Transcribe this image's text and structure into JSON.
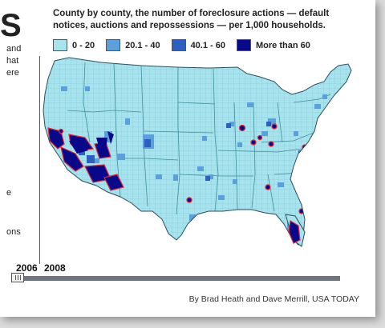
{
  "side_text": {
    "big_letter": "S",
    "lines": [
      "and",
      "hat",
      "ere"
    ],
    "line_e": "e",
    "line_ons": "ons"
  },
  "title": "County by county, the number of foreclosure actions — default notices, auctions and repossessions — per 1,000 households.",
  "legend": [
    {
      "label": "0 - 20",
      "color": "#a6e3ec"
    },
    {
      "label": "20.1 - 40",
      "color": "#5aa0dc"
    },
    {
      "label": "40.1 - 60",
      "color": "#2c5fc0"
    },
    {
      "label": "More than 60",
      "color": "#08088a"
    }
  ],
  "timeline": {
    "years": [
      "2006",
      "2008"
    ],
    "selected": "2008"
  },
  "credit": "By Brad Heath and Dave Merrill, USA TODAY"
}
